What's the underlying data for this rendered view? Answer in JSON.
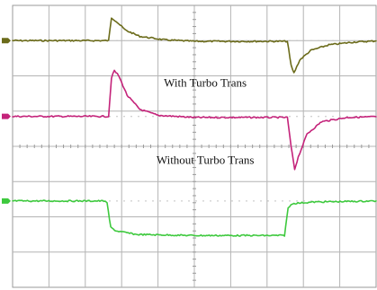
{
  "chart_data": {
    "type": "line",
    "title": "",
    "xlabel": "",
    "ylabel": "",
    "grid": true,
    "grid_divisions": {
      "x": 10,
      "y": 8
    },
    "xlim": [
      0,
      10
    ],
    "ylim": [
      -4,
      4
    ],
    "annotations": [
      {
        "text": "With Turbo Trans",
        "x": 5.3,
        "y": 1.7
      },
      {
        "text": "Without Turbo Trans",
        "x": 5.3,
        "y": -0.5
      }
    ],
    "series": [
      {
        "color": "#6b6b1a",
        "values": [
          {
            "x": 0.0,
            "y": 3.0
          },
          {
            "x": 2.64,
            "y": 3.0
          },
          {
            "x": 2.72,
            "y": 3.65
          },
          {
            "x": 2.85,
            "y": 3.55
          },
          {
            "x": 3.1,
            "y": 3.3
          },
          {
            "x": 3.5,
            "y": 3.12
          },
          {
            "x": 4.2,
            "y": 3.02
          },
          {
            "x": 5.0,
            "y": 2.98
          },
          {
            "x": 7.56,
            "y": 2.98
          },
          {
            "x": 7.66,
            "y": 2.3
          },
          {
            "x": 7.74,
            "y": 2.08
          },
          {
            "x": 7.9,
            "y": 2.45
          },
          {
            "x": 8.2,
            "y": 2.72
          },
          {
            "x": 8.7,
            "y": 2.88
          },
          {
            "x": 9.4,
            "y": 2.96
          },
          {
            "x": 10.0,
            "y": 2.99
          }
        ]
      },
      {
        "color": "#c4237a",
        "values": [
          {
            "x": 0.0,
            "y": 0.85
          },
          {
            "x": 2.64,
            "y": 0.85
          },
          {
            "x": 2.72,
            "y": 1.95
          },
          {
            "x": 2.8,
            "y": 2.15
          },
          {
            "x": 2.92,
            "y": 2.0
          },
          {
            "x": 3.15,
            "y": 1.45
          },
          {
            "x": 3.5,
            "y": 1.05
          },
          {
            "x": 4.0,
            "y": 0.88
          },
          {
            "x": 5.0,
            "y": 0.82
          },
          {
            "x": 7.56,
            "y": 0.82
          },
          {
            "x": 7.66,
            "y": 0.0
          },
          {
            "x": 7.76,
            "y": -0.65
          },
          {
            "x": 7.86,
            "y": -0.3
          },
          {
            "x": 8.1,
            "y": 0.35
          },
          {
            "x": 8.5,
            "y": 0.7
          },
          {
            "x": 9.2,
            "y": 0.82
          },
          {
            "x": 10.0,
            "y": 0.84
          }
        ]
      },
      {
        "color": "#3ec93e",
        "values": [
          {
            "x": 0.0,
            "y": -1.55
          },
          {
            "x": 2.55,
            "y": -1.55
          },
          {
            "x": 2.6,
            "y": -1.62
          },
          {
            "x": 2.7,
            "y": -2.3
          },
          {
            "x": 2.85,
            "y": -2.4
          },
          {
            "x": 3.4,
            "y": -2.5
          },
          {
            "x": 5.0,
            "y": -2.53
          },
          {
            "x": 7.48,
            "y": -2.53
          },
          {
            "x": 7.58,
            "y": -1.75
          },
          {
            "x": 7.7,
            "y": -1.62
          },
          {
            "x": 8.3,
            "y": -1.58
          },
          {
            "x": 10.0,
            "y": -1.55
          }
        ]
      }
    ]
  }
}
